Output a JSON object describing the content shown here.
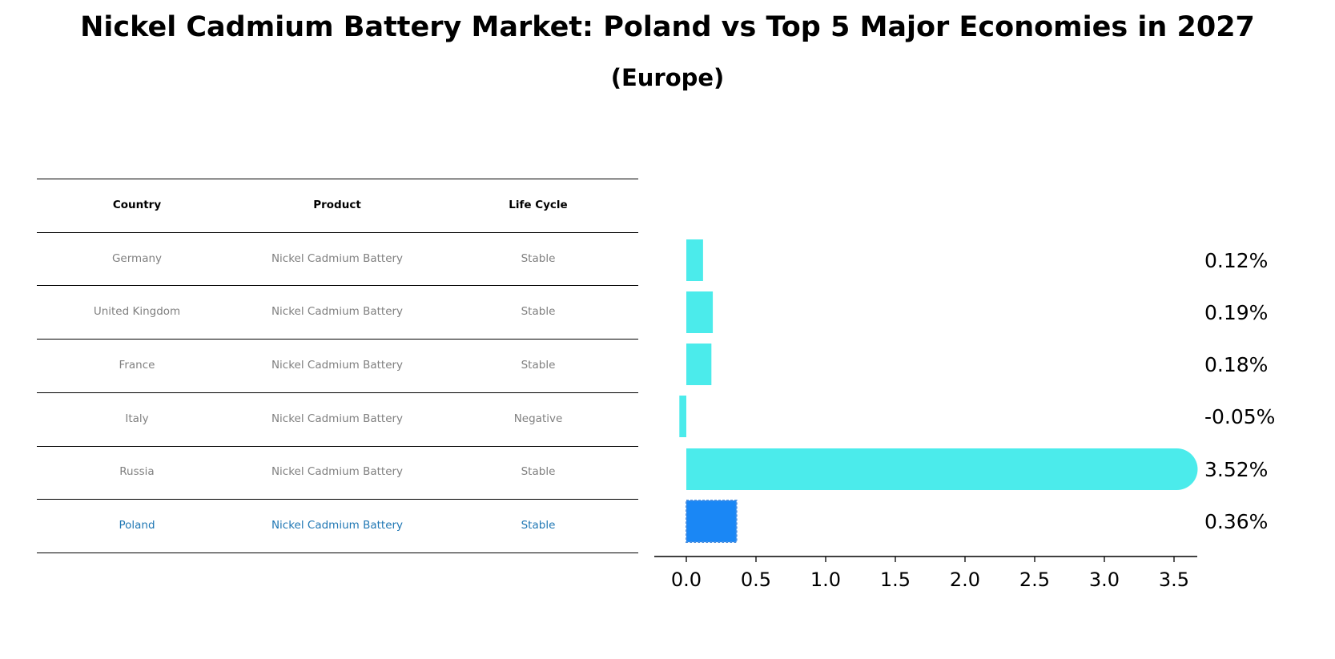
{
  "title": "Nickel Cadmium Battery Market: Poland vs Top 5 Major Economies in 2027",
  "subtitle": "(Europe)",
  "table": {
    "headers": [
      "Country",
      "Product",
      "Life Cycle"
    ],
    "rows": [
      {
        "country": "Germany",
        "product": "Nickel Cadmium Battery",
        "life_cycle": "Stable",
        "highlight": false
      },
      {
        "country": "United Kingdom",
        "product": "Nickel Cadmium Battery",
        "life_cycle": "Stable",
        "highlight": false
      },
      {
        "country": "France",
        "product": "Nickel Cadmium Battery",
        "life_cycle": "Stable",
        "highlight": false
      },
      {
        "country": "Italy",
        "product": "Nickel Cadmium Battery",
        "life_cycle": "Negative",
        "highlight": false
      },
      {
        "country": "Russia",
        "product": "Nickel Cadmium Battery",
        "life_cycle": "Stable",
        "highlight": false
      },
      {
        "country": "Poland",
        "product": "Nickel Cadmium Battery",
        "life_cycle": "Stable",
        "highlight": true
      }
    ]
  },
  "chart_data": {
    "type": "bar",
    "orientation": "horizontal",
    "categories": [
      "Germany",
      "United Kingdom",
      "France",
      "Italy",
      "Russia",
      "Poland"
    ],
    "values": [
      0.12,
      0.19,
      0.18,
      -0.05,
      3.52,
      0.36
    ],
    "value_labels": [
      "0.12%",
      "0.19%",
      "0.18%",
      "-0.05%",
      "3.52%",
      "0.36%"
    ],
    "xlim": [
      -0.23,
      3.7
    ],
    "xticks": [
      0.0,
      0.5,
      1.0,
      1.5,
      2.0,
      2.5,
      3.0,
      3.5
    ],
    "xtick_labels": [
      "0.0",
      "0.5",
      "1.0",
      "1.5",
      "2.0",
      "2.5",
      "3.0",
      "3.5"
    ],
    "colors": {
      "default": "#4BEBEB",
      "highlight": "#1A87F5"
    },
    "highlight_category": "Poland",
    "grid": false,
    "legend": "none"
  }
}
